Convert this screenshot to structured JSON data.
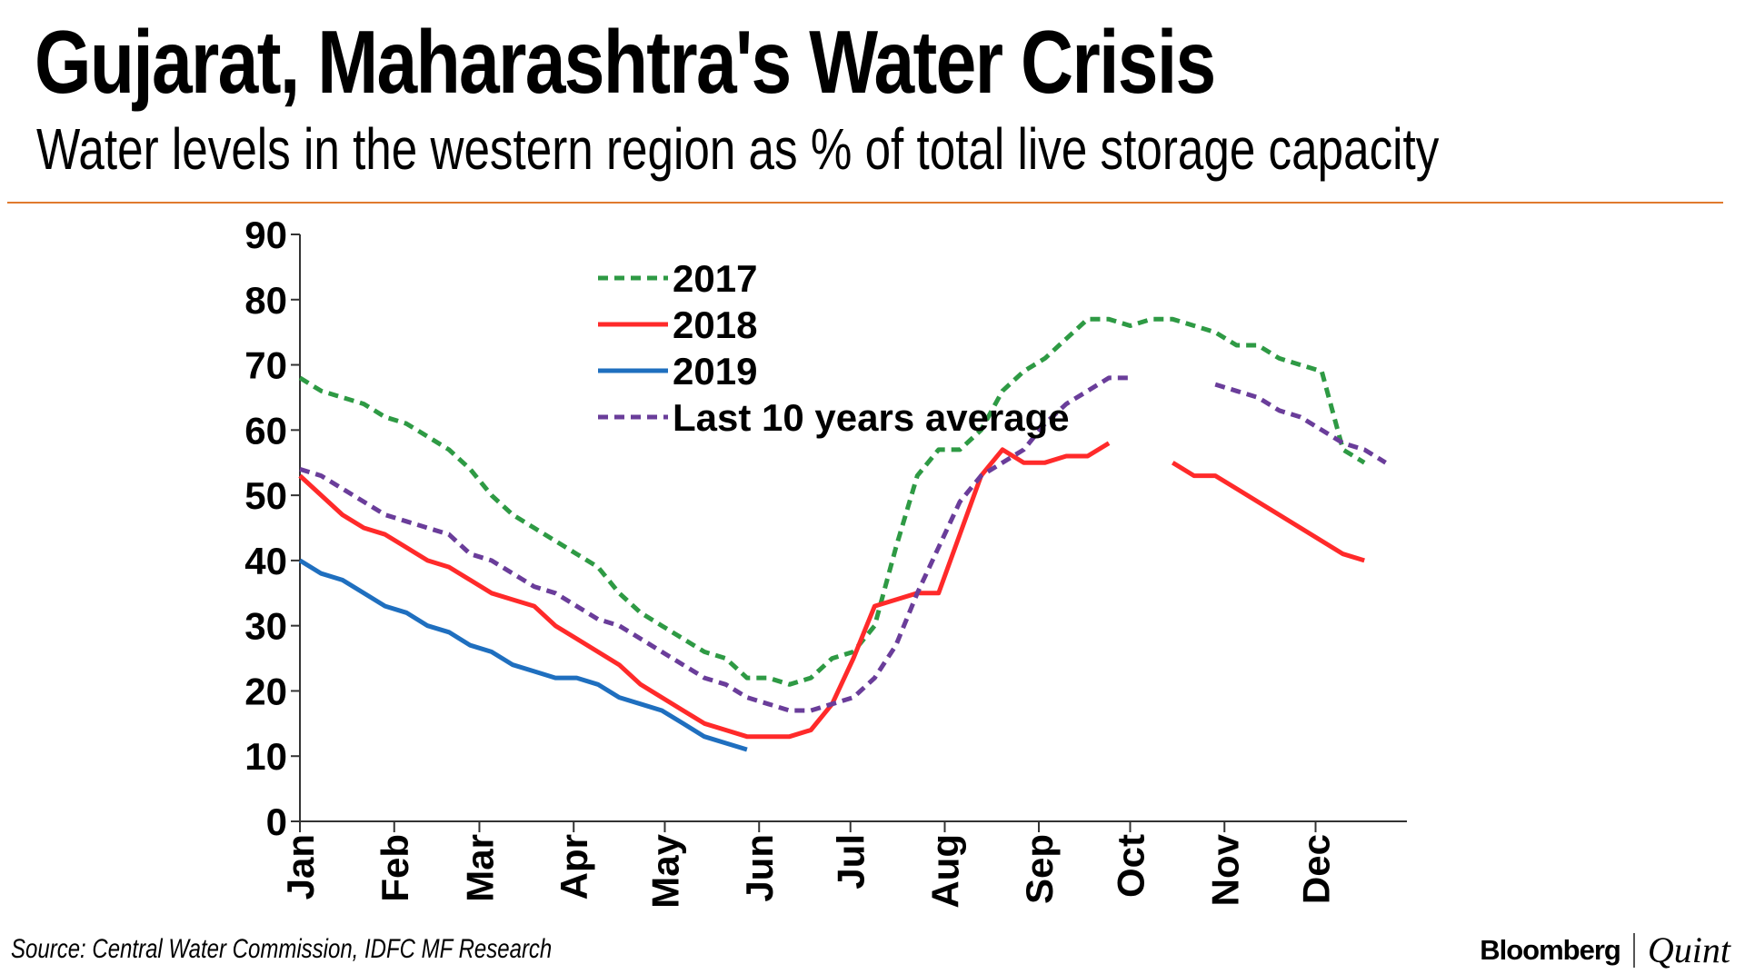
{
  "header": {
    "title": "Gujarat, Maharashtra's Water Crisis",
    "subtitle": "Water levels in the western region as % of total live storage capacity"
  },
  "footer": {
    "source": "Source: Central Water Commission, IDFC MF Research",
    "logo_left": "Bloomberg",
    "logo_right": "Quint"
  },
  "colors": {
    "rule": "#e07a2e",
    "s2017": "#2e9a44",
    "s2018": "#ff2a2a",
    "s2019": "#1f6fbf",
    "avg": "#6a3d9a"
  },
  "chart_data": {
    "type": "line",
    "title": "Gujarat, Maharashtra's Water Crisis",
    "subtitle": "Water levels in the western region as % of total live storage capacity",
    "xlabel": "",
    "ylabel": "",
    "ylim": [
      0,
      90
    ],
    "yticks": [
      0,
      10,
      20,
      30,
      40,
      50,
      60,
      70,
      80,
      90
    ],
    "xlim": [
      0,
      52
    ],
    "month_ticks": [
      {
        "label": "Jan",
        "week": 0
      },
      {
        "label": "Feb",
        "week": 4.43
      },
      {
        "label": "Mar",
        "week": 8.43
      },
      {
        "label": "Apr",
        "week": 12.86
      },
      {
        "label": "May",
        "week": 17.14
      },
      {
        "label": "Jun",
        "week": 21.57
      },
      {
        "label": "Jul",
        "week": 25.86
      },
      {
        "label": "Aug",
        "week": 30.29
      },
      {
        "label": "Sep",
        "week": 34.71
      },
      {
        "label": "Oct",
        "week": 39
      },
      {
        "label": "Nov",
        "week": 43.43
      },
      {
        "label": "Dec",
        "week": 47.71
      }
    ],
    "legend_position": "top-center",
    "series": [
      {
        "name": "2017",
        "style": "dashed",
        "color_key": "s2017",
        "points": [
          [
            0,
            68
          ],
          [
            1,
            66
          ],
          [
            2,
            65
          ],
          [
            3,
            64
          ],
          [
            4,
            62
          ],
          [
            5,
            61
          ],
          [
            6,
            59
          ],
          [
            7,
            57
          ],
          [
            8,
            54
          ],
          [
            9,
            50
          ],
          [
            10,
            47
          ],
          [
            11,
            45
          ],
          [
            12,
            43
          ],
          [
            13,
            41
          ],
          [
            14,
            39
          ],
          [
            15,
            35
          ],
          [
            16,
            32
          ],
          [
            17,
            30
          ],
          [
            18,
            28
          ],
          [
            19,
            26
          ],
          [
            20,
            25
          ],
          [
            21,
            22
          ],
          [
            22,
            22
          ],
          [
            23,
            21
          ],
          [
            24,
            22
          ],
          [
            25,
            25
          ],
          [
            26,
            26
          ],
          [
            27,
            30
          ],
          [
            28,
            42
          ],
          [
            29,
            53
          ],
          [
            30,
            57
          ],
          [
            31,
            57
          ],
          [
            32,
            60
          ],
          [
            33,
            66
          ],
          [
            34,
            69
          ],
          [
            35,
            71
          ],
          [
            36,
            74
          ],
          [
            37,
            77
          ],
          [
            38,
            77
          ],
          [
            39,
            76
          ],
          [
            40,
            77
          ],
          [
            41,
            77
          ],
          [
            42,
            76
          ],
          [
            43,
            75
          ],
          [
            44,
            73
          ],
          [
            45,
            73
          ],
          [
            46,
            71
          ],
          [
            47,
            70
          ],
          [
            48,
            69
          ],
          [
            49,
            57
          ],
          [
            50,
            55
          ]
        ]
      },
      {
        "name": "2018",
        "style": "solid",
        "color_key": "s2018",
        "points": [
          [
            0,
            53
          ],
          [
            1,
            50
          ],
          [
            2,
            47
          ],
          [
            3,
            45
          ],
          [
            4,
            44
          ],
          [
            5,
            42
          ],
          [
            6,
            40
          ],
          [
            7,
            39
          ],
          [
            8,
            37
          ],
          [
            9,
            35
          ],
          [
            10,
            34
          ],
          [
            11,
            33
          ],
          [
            12,
            30
          ],
          [
            13,
            28
          ],
          [
            14,
            26
          ],
          [
            15,
            24
          ],
          [
            16,
            21
          ],
          [
            17,
            19
          ],
          [
            18,
            17
          ],
          [
            19,
            15
          ],
          [
            20,
            14
          ],
          [
            21,
            13
          ],
          [
            22,
            13
          ],
          [
            23,
            13
          ],
          [
            24,
            14
          ],
          [
            25,
            18
          ],
          [
            26,
            25
          ],
          [
            27,
            33
          ],
          [
            28,
            34
          ],
          [
            29,
            35
          ],
          [
            30,
            35
          ],
          [
            31,
            44
          ],
          [
            32,
            53
          ],
          [
            33,
            57
          ],
          [
            34,
            55
          ],
          [
            35,
            55
          ],
          [
            36,
            56
          ],
          [
            37,
            56
          ],
          [
            38,
            58
          ],
          [
            null,
            null
          ],
          [
            41,
            55
          ],
          [
            42,
            53
          ],
          [
            43,
            53
          ],
          [
            44,
            51
          ],
          [
            45,
            49
          ],
          [
            46,
            47
          ],
          [
            47,
            45
          ],
          [
            48,
            43
          ],
          [
            49,
            41
          ],
          [
            50,
            40
          ]
        ]
      },
      {
        "name": "2019",
        "style": "solid",
        "color_key": "s2019",
        "points": [
          [
            0,
            40
          ],
          [
            1,
            38
          ],
          [
            2,
            37
          ],
          [
            3,
            35
          ],
          [
            4,
            33
          ],
          [
            5,
            32
          ],
          [
            6,
            30
          ],
          [
            7,
            29
          ],
          [
            8,
            27
          ],
          [
            9,
            26
          ],
          [
            10,
            24
          ],
          [
            11,
            23
          ],
          [
            12,
            22
          ],
          [
            13,
            22
          ],
          [
            14,
            21
          ],
          [
            15,
            19
          ],
          [
            16,
            18
          ],
          [
            17,
            17
          ],
          [
            18,
            15
          ],
          [
            19,
            13
          ],
          [
            20,
            12
          ],
          [
            21,
            11
          ]
        ]
      },
      {
        "name": "Last 10 years average",
        "style": "dashed",
        "color_key": "avg",
        "points": [
          [
            0,
            54
          ],
          [
            1,
            53
          ],
          [
            2,
            51
          ],
          [
            3,
            49
          ],
          [
            4,
            47
          ],
          [
            5,
            46
          ],
          [
            6,
            45
          ],
          [
            7,
            44
          ],
          [
            8,
            41
          ],
          [
            9,
            40
          ],
          [
            10,
            38
          ],
          [
            11,
            36
          ],
          [
            12,
            35
          ],
          [
            13,
            33
          ],
          [
            14,
            31
          ],
          [
            15,
            30
          ],
          [
            16,
            28
          ],
          [
            17,
            26
          ],
          [
            18,
            24
          ],
          [
            19,
            22
          ],
          [
            20,
            21
          ],
          [
            21,
            19
          ],
          [
            22,
            18
          ],
          [
            23,
            17
          ],
          [
            24,
            17
          ],
          [
            25,
            18
          ],
          [
            26,
            19
          ],
          [
            27,
            22
          ],
          [
            28,
            27
          ],
          [
            29,
            35
          ],
          [
            30,
            42
          ],
          [
            31,
            49
          ],
          [
            32,
            53
          ],
          [
            33,
            55
          ],
          [
            34,
            57
          ],
          [
            35,
            61
          ],
          [
            36,
            64
          ],
          [
            37,
            66
          ],
          [
            38,
            68
          ],
          [
            39,
            68
          ],
          [
            null,
            null
          ],
          [
            43,
            67
          ],
          [
            44,
            66
          ],
          [
            45,
            65
          ],
          [
            46,
            63
          ],
          [
            47,
            62
          ],
          [
            48,
            60
          ],
          [
            49,
            58
          ],
          [
            50,
            57
          ],
          [
            51,
            55
          ]
        ]
      }
    ]
  }
}
